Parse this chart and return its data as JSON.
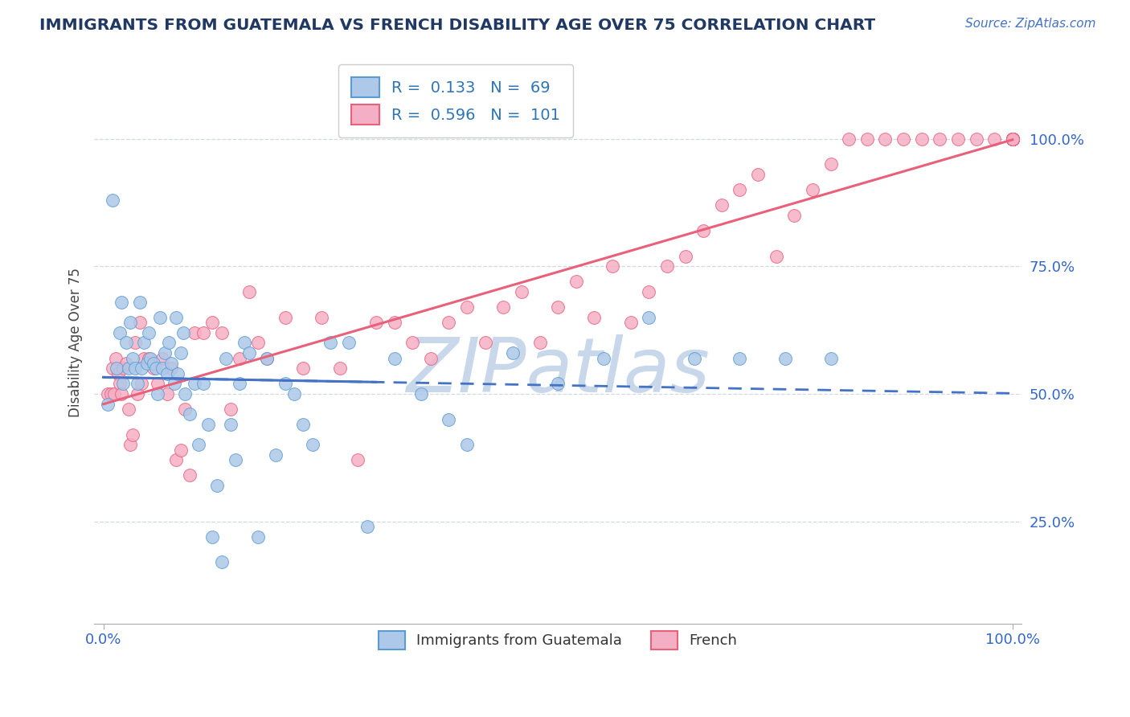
{
  "title": "IMMIGRANTS FROM GUATEMALA VS FRENCH DISABILITY AGE OVER 75 CORRELATION CHART",
  "source": "Source: ZipAtlas.com",
  "ylabel": "Disability Age Over 75",
  "legend_labels": [
    "Immigrants from Guatemala",
    "French"
  ],
  "blue_R": 0.133,
  "blue_N": 69,
  "pink_R": 0.596,
  "pink_N": 101,
  "blue_color": "#adc8e8",
  "pink_color": "#f5afc5",
  "blue_edge_color": "#5b9bd5",
  "pink_edge_color": "#e8607a",
  "blue_line_color": "#4472c4",
  "pink_line_color": "#e8607a",
  "title_color": "#1f3864",
  "source_color": "#4472c4",
  "legend_R_color": "#2e75b6",
  "grid_color": "#d0d8e4",
  "watermark_color": "#c8d8ea",
  "blue_scatter_x": [
    0.5,
    1.0,
    1.5,
    1.8,
    2.0,
    2.2,
    2.5,
    2.8,
    3.0,
    3.2,
    3.5,
    3.8,
    4.0,
    4.2,
    4.5,
    4.8,
    5.0,
    5.2,
    5.5,
    5.8,
    6.0,
    6.2,
    6.5,
    6.8,
    7.0,
    7.2,
    7.5,
    7.8,
    8.0,
    8.2,
    8.5,
    8.8,
    9.0,
    9.5,
    10.0,
    10.5,
    11.0,
    11.5,
    12.0,
    12.5,
    13.0,
    13.5,
    14.0,
    14.5,
    15.0,
    15.5,
    16.0,
    17.0,
    18.0,
    19.0,
    20.0,
    21.0,
    22.0,
    23.0,
    25.0,
    27.0,
    29.0,
    32.0,
    35.0,
    38.0,
    40.0,
    45.0,
    50.0,
    55.0,
    60.0,
    65.0,
    70.0,
    75.0,
    80.0
  ],
  "blue_scatter_y": [
    48,
    88,
    55,
    62,
    68,
    52,
    60,
    55,
    64,
    57,
    55,
    52,
    68,
    55,
    60,
    56,
    62,
    57,
    56,
    55,
    50,
    65,
    55,
    58,
    54,
    60,
    56,
    52,
    65,
    54,
    58,
    62,
    50,
    46,
    52,
    40,
    52,
    44,
    22,
    32,
    17,
    57,
    44,
    37,
    52,
    60,
    58,
    22,
    57,
    38,
    52,
    50,
    44,
    40,
    60,
    60,
    24,
    57,
    50,
    45,
    40,
    58,
    52,
    57,
    65,
    57,
    57,
    57,
    57
  ],
  "pink_scatter_x": [
    0.5,
    0.8,
    1.0,
    1.2,
    1.4,
    1.6,
    1.8,
    2.0,
    2.2,
    2.5,
    2.8,
    3.0,
    3.2,
    3.5,
    3.8,
    4.0,
    4.2,
    4.5,
    5.0,
    5.5,
    6.0,
    6.5,
    7.0,
    7.5,
    8.0,
    8.5,
    9.0,
    9.5,
    10.0,
    11.0,
    12.0,
    13.0,
    14.0,
    15.0,
    16.0,
    17.0,
    18.0,
    20.0,
    22.0,
    24.0,
    26.0,
    28.0,
    30.0,
    32.0,
    34.0,
    36.0,
    38.0,
    40.0,
    42.0,
    44.0,
    46.0,
    48.0,
    50.0,
    52.0,
    54.0,
    56.0,
    58.0,
    60.0,
    62.0,
    64.0,
    66.0,
    68.0,
    70.0,
    72.0,
    74.0,
    76.0,
    78.0,
    80.0,
    82.0,
    84.0,
    86.0,
    88.0,
    90.0,
    92.0,
    94.0,
    96.0,
    98.0,
    100.0,
    100.0,
    100.0,
    100.0,
    100.0,
    100.0,
    100.0,
    100.0,
    100.0,
    100.0,
    100.0,
    100.0,
    100.0,
    100.0,
    100.0,
    100.0,
    100.0,
    100.0,
    100.0,
    100.0,
    100.0,
    100.0,
    100.0,
    100.0
  ],
  "pink_scatter_y": [
    50,
    50,
    55,
    50,
    57,
    54,
    52,
    50,
    55,
    56,
    47,
    40,
    42,
    60,
    50,
    64,
    52,
    57,
    57,
    55,
    52,
    57,
    50,
    55,
    37,
    39,
    47,
    34,
    62,
    62,
    64,
    62,
    47,
    57,
    70,
    60,
    57,
    65,
    55,
    65,
    55,
    37,
    64,
    64,
    60,
    57,
    64,
    67,
    60,
    67,
    70,
    60,
    67,
    72,
    65,
    75,
    64,
    70,
    75,
    77,
    82,
    87,
    90,
    93,
    77,
    85,
    90,
    95,
    100,
    100,
    100,
    100,
    100,
    100,
    100,
    100,
    100,
    100,
    100,
    100,
    100,
    100,
    100,
    100,
    100,
    100,
    100,
    100,
    100,
    100,
    100,
    100,
    100,
    100,
    100,
    100,
    100,
    100,
    100,
    100,
    100
  ]
}
